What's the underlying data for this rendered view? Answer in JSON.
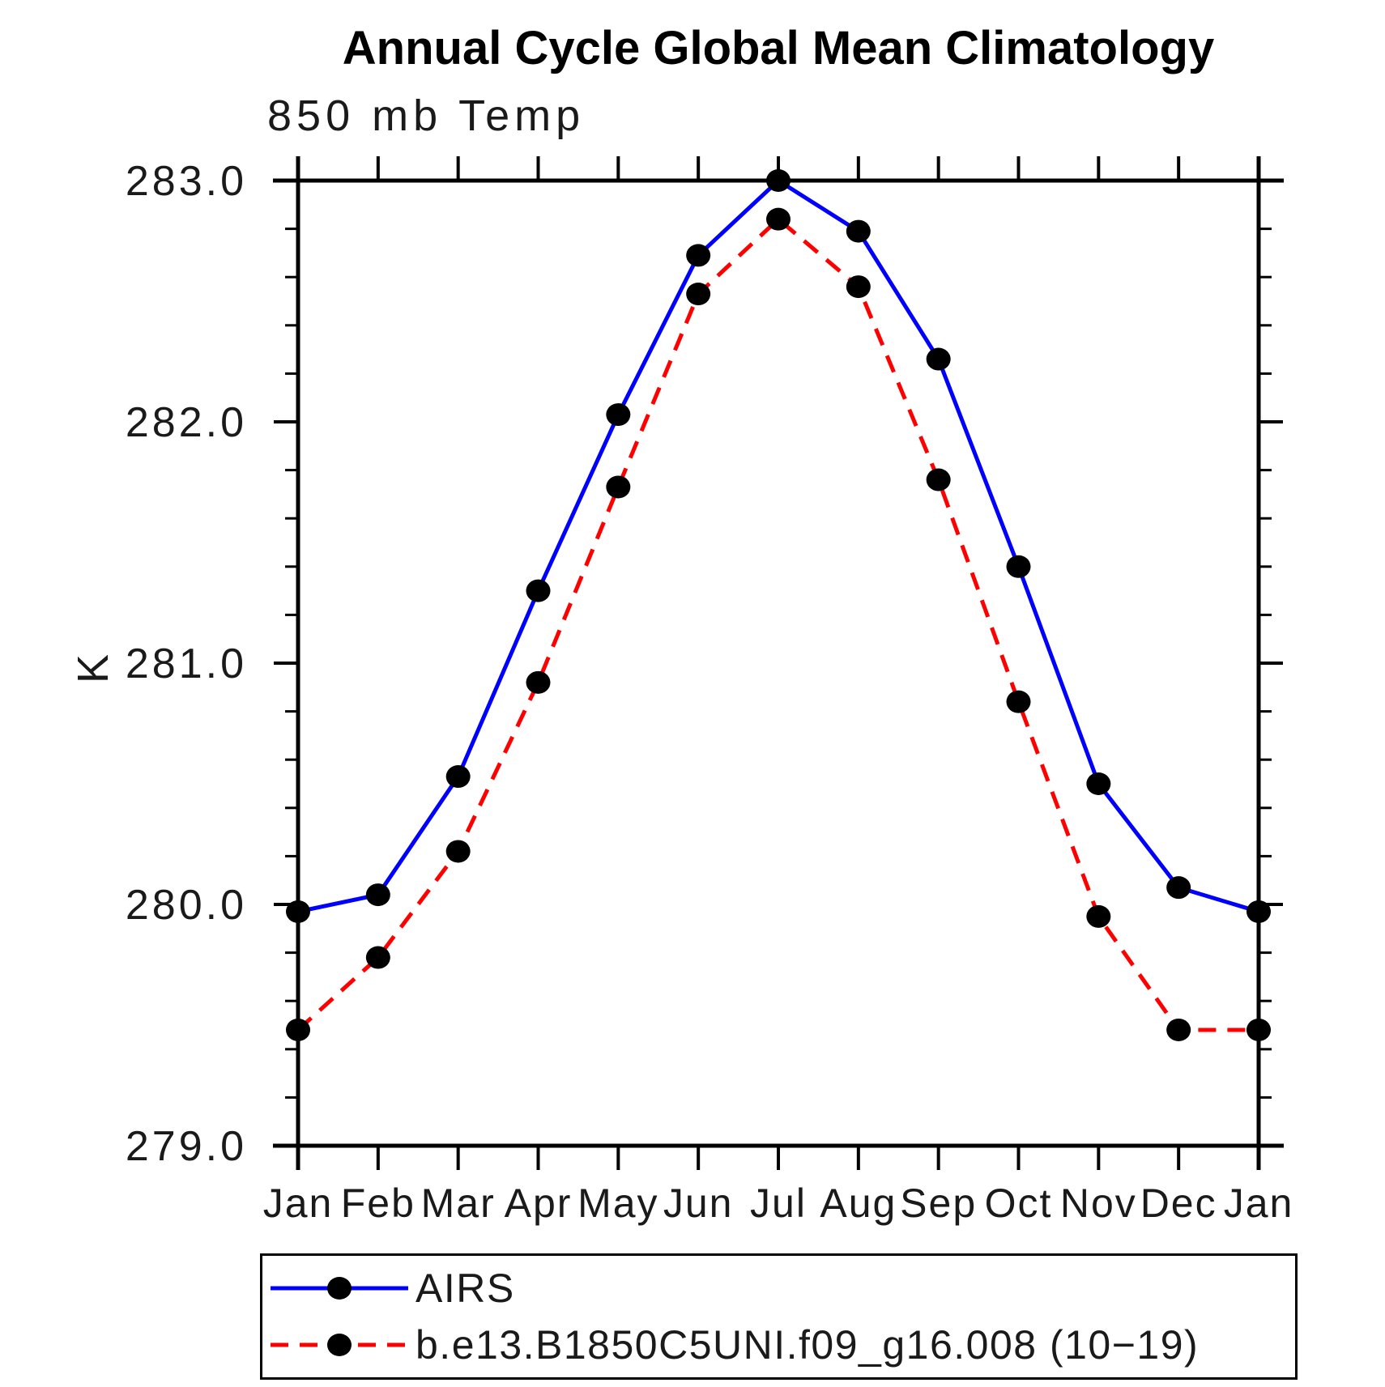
{
  "chart_data": {
    "type": "line",
    "title": "Annual Cycle Global Mean Climatology",
    "subtitle": "850 mb Temp",
    "xlabel": "",
    "ylabel": "K",
    "x_categories": [
      "Jan",
      "Feb",
      "Mar",
      "Apr",
      "May",
      "Jun",
      "Jul",
      "Aug",
      "Sep",
      "Oct",
      "Nov",
      "Dec",
      "Jan"
    ],
    "ylim": [
      279.0,
      283.0
    ],
    "ytick_major_values": [
      283.0,
      282.0,
      281.0,
      280.0,
      279.0
    ],
    "ytick_major_labels": [
      "283.0",
      "282.0",
      "281.0",
      "280.0",
      "279.0"
    ],
    "ytick_minor_step": 0.2,
    "grid": false,
    "legend_position": "bottom",
    "axis_color": "#000000",
    "text_color": "#1a1a1a",
    "marker_shape": "filled-circle",
    "series": [
      {
        "name": "AIRS",
        "color": "#0000ff",
        "line_style": "solid",
        "marker_color": "#000000",
        "values": [
          279.97,
          280.04,
          280.53,
          281.3,
          282.03,
          282.69,
          283.0,
          282.79,
          282.26,
          281.4,
          280.5,
          280.07,
          279.97
        ]
      },
      {
        "name": "b.e13.B1850C5UNI.f09_g16.008 (10−19)",
        "color": "#ff0000",
        "line_style": "dashed",
        "marker_color": "#000000",
        "values": [
          279.48,
          279.78,
          280.22,
          280.92,
          281.73,
          282.53,
          282.84,
          282.56,
          281.76,
          280.84,
          279.95,
          279.48,
          279.48
        ]
      }
    ]
  }
}
